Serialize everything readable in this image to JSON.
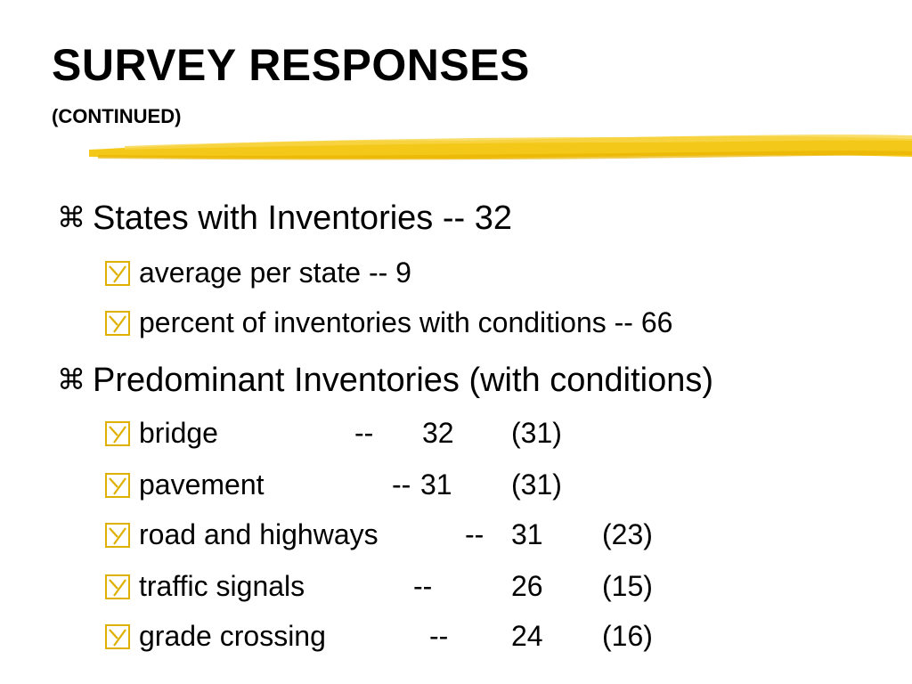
{
  "slide": {
    "title": "SURVEY RESPONSES",
    "subtitle": "(CONTINUED)",
    "accent_color": "#F2C200",
    "bullet_l1_glyph": "⌘",
    "bullet_l2_icon": "checkbox-y-icon"
  },
  "section1": {
    "heading": "States with Inventories -- 32",
    "items": [
      "average per state -- 9",
      "percent of inventories with conditions -- 66"
    ]
  },
  "section2": {
    "heading": "Predominant Inventories (with conditions)",
    "rows": [
      {
        "name": "bridge",
        "sep": "--",
        "count": "32",
        "cond": "(31)"
      },
      {
        "name": "pavement",
        "sep": "--",
        "count": "31",
        "cond": "(31)"
      },
      {
        "name": "road and highways",
        "sep": "--",
        "count": "31",
        "cond": "(23)"
      },
      {
        "name": "traffic signals",
        "sep": "--",
        "count": "26",
        "cond": "(15)"
      },
      {
        "name": "grade crossing",
        "sep": "--",
        "count": "24",
        "cond": "(16)"
      }
    ]
  }
}
